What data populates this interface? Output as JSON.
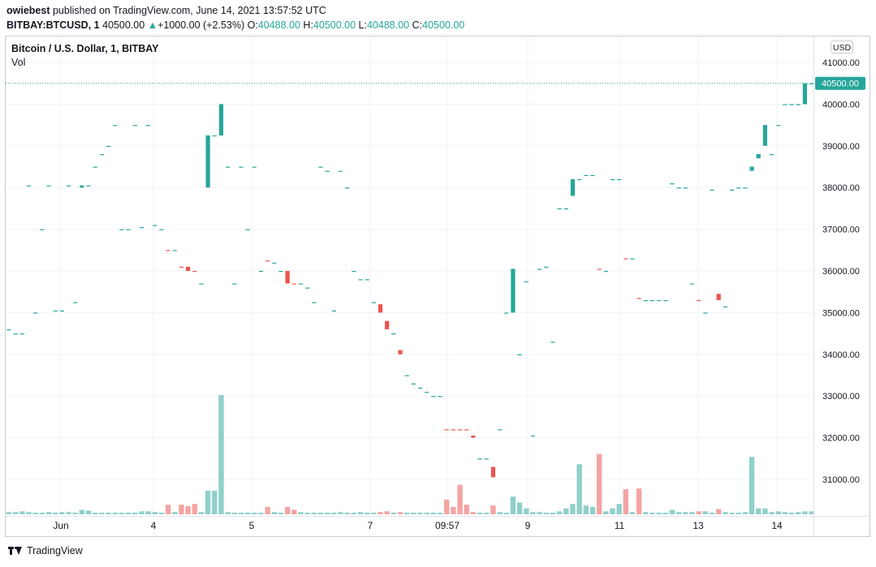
{
  "header": {
    "author": "owiebest",
    "published": "published on TradingView.com, June 14, 2021 13:57:52 UTC",
    "symbol": "BITBAY:BTCUSD, 1",
    "last": "40500.00",
    "change": "+1000.00 (+2.53%)",
    "o_label": "O:",
    "o": "40488.00",
    "h_label": "H:",
    "h": "40500.00",
    "l_label": "L:",
    "l": "40488.00",
    "c_label": "C:",
    "c": "40500.00"
  },
  "legend": {
    "title": "Bitcoin / U.S. Dollar, 1, BITBAY",
    "vol": "Vol"
  },
  "currency_button": "USD",
  "footer": {
    "brand": "TradingView"
  },
  "colors": {
    "up": "#26a69a",
    "down": "#ef5350",
    "vol_up": "#8fd0c9",
    "vol_down": "#f3a4a3",
    "grid": "#f0f3fa",
    "last_price_bg": "#26a69a"
  },
  "chart_data": {
    "type": "candlestick",
    "x_ticks": [
      "Jun",
      "4",
      "5",
      "7",
      "09:57",
      "9",
      "11",
      "13",
      "14"
    ],
    "y_ticks": [
      "41000.00",
      "40000.00",
      "39000.00",
      "38000.00",
      "37000.00",
      "36000.00",
      "35000.00",
      "34000.00",
      "33000.00",
      "32000.00",
      "31000.00"
    ],
    "ylim": [
      30150,
      41600
    ],
    "last_price_label": "40500.00",
    "grid": true,
    "candles": [
      {
        "t": 0,
        "o": 34600,
        "c": 34600,
        "v": 3
      },
      {
        "t": 1,
        "o": 34500,
        "c": 34500,
        "v": 3
      },
      {
        "t": 2,
        "o": 34500,
        "c": 34500,
        "v": 4
      },
      {
        "t": 3,
        "o": 38050,
        "c": 38050,
        "v": 3
      },
      {
        "t": 4,
        "o": 35000,
        "c": 35000,
        "v": 2
      },
      {
        "t": 5,
        "o": 37000,
        "c": 37000,
        "v": 2
      },
      {
        "t": 6,
        "o": 38050,
        "c": 38050,
        "v": 3
      },
      {
        "t": 7,
        "o": 35050,
        "c": 35050,
        "v": 2
      },
      {
        "t": 8,
        "o": 35050,
        "c": 35050,
        "v": 3
      },
      {
        "t": 9,
        "o": 38050,
        "c": 38050,
        "v": 3
      },
      {
        "t": 10,
        "o": 35250,
        "c": 35250,
        "v": 2
      },
      {
        "t": 11,
        "o": 38000,
        "c": 38050,
        "v": 6
      },
      {
        "t": 12,
        "o": 38050,
        "c": 38050,
        "v": 5
      },
      {
        "t": 13,
        "o": 38500,
        "c": 38500,
        "v": 2
      },
      {
        "t": 14,
        "o": 38800,
        "c": 38800,
        "v": 2
      },
      {
        "t": 15,
        "o": 39000,
        "c": 39000,
        "v": 2
      },
      {
        "t": 16,
        "o": 39500,
        "c": 39500,
        "v": 2
      },
      {
        "t": 17,
        "o": 37000,
        "c": 37000,
        "v": 2
      },
      {
        "t": 18,
        "o": 37000,
        "c": 37000,
        "v": 2
      },
      {
        "t": 19,
        "o": 39500,
        "c": 39500,
        "v": 2
      },
      {
        "t": 20,
        "o": 37050,
        "c": 37050,
        "v": 4
      },
      {
        "t": 21,
        "o": 39500,
        "c": 39500,
        "v": 4
      },
      {
        "t": 22,
        "o": 37100,
        "c": 37100,
        "v": 3
      },
      {
        "t": 23,
        "o": 37000,
        "c": 37000,
        "v": 2
      },
      {
        "t": 24,
        "o": 36500,
        "c": 36500,
        "v": 13,
        "d": 1
      },
      {
        "t": 25,
        "o": 36500,
        "c": 36500,
        "v": 3
      },
      {
        "t": 26,
        "o": 36100,
        "c": 36100,
        "v": 13,
        "d": 1
      },
      {
        "t": 27,
        "o": 36100,
        "c": 36000,
        "v": 11,
        "d": 1
      },
      {
        "t": 28,
        "o": 36000,
        "c": 36000,
        "v": 14,
        "d": 1
      },
      {
        "t": 29,
        "o": 35700,
        "c": 35700,
        "v": 3
      },
      {
        "t": 30,
        "o": 38000,
        "c": 39250,
        "v": 32
      },
      {
        "t": 31,
        "o": 39250,
        "c": 39250,
        "v": 32
      },
      {
        "t": 32,
        "o": 39250,
        "c": 40000,
        "v": 162
      },
      {
        "t": 33,
        "o": 38500,
        "c": 38500,
        "v": 3
      },
      {
        "t": 34,
        "o": 35700,
        "c": 35700,
        "v": 2
      },
      {
        "t": 35,
        "o": 38500,
        "c": 38500,
        "v": 2
      },
      {
        "t": 36,
        "o": 37000,
        "c": 37000,
        "v": 2
      },
      {
        "t": 37,
        "o": 38500,
        "c": 38500,
        "v": 2
      },
      {
        "t": 38,
        "o": 36000,
        "c": 36000,
        "v": 2
      },
      {
        "t": 39,
        "o": 36250,
        "c": 36250,
        "v": 10,
        "d": 1
      },
      {
        "t": 40,
        "o": 36200,
        "c": 36200,
        "v": 3
      },
      {
        "t": 41,
        "o": 36000,
        "c": 36000,
        "v": 2
      },
      {
        "t": 42,
        "o": 36000,
        "c": 35700,
        "v": 10,
        "d": 1
      },
      {
        "t": 43,
        "o": 35700,
        "c": 35700,
        "v": 6,
        "d": 1
      },
      {
        "t": 44,
        "o": 35700,
        "c": 35700,
        "v": 3
      },
      {
        "t": 45,
        "o": 35600,
        "c": 35600,
        "v": 2
      },
      {
        "t": 46,
        "o": 35250,
        "c": 35250,
        "v": 2
      },
      {
        "t": 47,
        "o": 38500,
        "c": 38500,
        "v": 2
      },
      {
        "t": 48,
        "o": 38400,
        "c": 38400,
        "v": 2
      },
      {
        "t": 49,
        "o": 35050,
        "c": 35050,
        "v": 2
      },
      {
        "t": 50,
        "o": 38400,
        "c": 38400,
        "v": 3
      },
      {
        "t": 51,
        "o": 38000,
        "c": 38000,
        "v": 2
      },
      {
        "t": 52,
        "o": 36000,
        "c": 36000,
        "v": 2
      },
      {
        "t": 53,
        "o": 35800,
        "c": 35800,
        "v": 3
      },
      {
        "t": 54,
        "o": 35800,
        "c": 35800,
        "v": 2
      },
      {
        "t": 55,
        "o": 35250,
        "c": 35250,
        "v": 2
      },
      {
        "t": 56,
        "o": 35200,
        "c": 35000,
        "v": 3,
        "d": 1
      },
      {
        "t": 57,
        "o": 34800,
        "c": 34600,
        "v": 4,
        "d": 1
      },
      {
        "t": 58,
        "o": 34500,
        "c": 34500,
        "v": 2
      },
      {
        "t": 59,
        "o": 34100,
        "c": 34000,
        "v": 3,
        "d": 1
      },
      {
        "t": 60,
        "o": 33500,
        "c": 33500,
        "v": 2
      },
      {
        "t": 61,
        "o": 33300,
        "c": 33300,
        "v": 2
      },
      {
        "t": 62,
        "o": 33200,
        "c": 33200,
        "v": 2
      },
      {
        "t": 63,
        "o": 33100,
        "c": 33100,
        "v": 2
      },
      {
        "t": 64,
        "o": 33000,
        "c": 33000,
        "v": 2
      },
      {
        "t": 65,
        "o": 33000,
        "c": 33000,
        "v": 2
      },
      {
        "t": 66,
        "o": 32200,
        "c": 32200,
        "v": 20,
        "d": 1
      },
      {
        "t": 67,
        "o": 32200,
        "c": 32200,
        "v": 10,
        "d": 1
      },
      {
        "t": 68,
        "o": 32200,
        "c": 32200,
        "v": 40,
        "d": 1
      },
      {
        "t": 69,
        "o": 32200,
        "c": 32200,
        "v": 13,
        "d": 1
      },
      {
        "t": 70,
        "o": 32050,
        "c": 32000,
        "v": 3,
        "d": 1
      },
      {
        "t": 71,
        "o": 31500,
        "c": 31500,
        "v": 2
      },
      {
        "t": 72,
        "o": 31500,
        "c": 31500,
        "v": 2
      },
      {
        "t": 73,
        "o": 31300,
        "c": 31050,
        "v": 12,
        "d": 1
      },
      {
        "t": 74,
        "o": 32200,
        "c": 32200,
        "v": 3
      },
      {
        "t": 75,
        "o": 35000,
        "c": 35000,
        "v": 2
      },
      {
        "t": 76,
        "o": 35000,
        "c": 36050,
        "v": 24
      },
      {
        "t": 77,
        "o": 34000,
        "c": 34000,
        "v": 16
      },
      {
        "t": 78,
        "o": 35750,
        "c": 35750,
        "v": 8
      },
      {
        "t": 79,
        "o": 32050,
        "c": 32050,
        "v": 3
      },
      {
        "t": 80,
        "o": 36050,
        "c": 36050,
        "v": 3
      },
      {
        "t": 81,
        "o": 36100,
        "c": 36100,
        "v": 2
      },
      {
        "t": 82,
        "o": 34300,
        "c": 34300,
        "v": 2
      },
      {
        "t": 83,
        "o": 37500,
        "c": 37500,
        "v": 4
      },
      {
        "t": 84,
        "o": 37500,
        "c": 37500,
        "v": 8
      },
      {
        "t": 85,
        "o": 37800,
        "c": 38200,
        "v": 14
      },
      {
        "t": 86,
        "o": 38200,
        "c": 38200,
        "v": 68
      },
      {
        "t": 87,
        "o": 38300,
        "c": 38300,
        "v": 12
      },
      {
        "t": 88,
        "o": 38300,
        "c": 38300,
        "v": 10
      },
      {
        "t": 89,
        "o": 36050,
        "c": 36050,
        "v": 82,
        "d": 1
      },
      {
        "t": 90,
        "o": 36000,
        "c": 36000,
        "v": 4
      },
      {
        "t": 91,
        "o": 38200,
        "c": 38200,
        "v": 8
      },
      {
        "t": 92,
        "o": 38200,
        "c": 38200,
        "v": 14
      },
      {
        "t": 93,
        "o": 36300,
        "c": 36300,
        "v": 34,
        "d": 1
      },
      {
        "t": 94,
        "o": 36300,
        "c": 36300,
        "v": 3
      },
      {
        "t": 95,
        "o": 35350,
        "c": 35350,
        "v": 35,
        "d": 1
      },
      {
        "t": 96,
        "o": 35300,
        "c": 35300,
        "v": 3
      },
      {
        "t": 97,
        "o": 35300,
        "c": 35300,
        "v": 2
      },
      {
        "t": 98,
        "o": 35300,
        "c": 35300,
        "v": 2
      },
      {
        "t": 99,
        "o": 35300,
        "c": 35300,
        "v": 2
      },
      {
        "t": 100,
        "o": 38100,
        "c": 38100,
        "v": 6
      },
      {
        "t": 101,
        "o": 38000,
        "c": 38000,
        "v": 3
      },
      {
        "t": 102,
        "o": 38000,
        "c": 38000,
        "v": 3
      },
      {
        "t": 103,
        "o": 35700,
        "c": 35700,
        "v": 3
      },
      {
        "t": 104,
        "o": 35300,
        "c": 35300,
        "v": 4,
        "d": 1
      },
      {
        "t": 105,
        "o": 35000,
        "c": 35000,
        "v": 4
      },
      {
        "t": 106,
        "o": 37950,
        "c": 37950,
        "v": 2
      },
      {
        "t": 107,
        "o": 35450,
        "c": 35300,
        "v": 7,
        "d": 1
      },
      {
        "t": 108,
        "o": 35150,
        "c": 35150,
        "v": 3
      },
      {
        "t": 109,
        "o": 37950,
        "c": 37950,
        "v": 2
      },
      {
        "t": 110,
        "o": 38000,
        "c": 38000,
        "v": 2
      },
      {
        "t": 111,
        "o": 38000,
        "c": 38000,
        "v": 3
      },
      {
        "t": 112,
        "o": 38400,
        "c": 38500,
        "v": 78
      },
      {
        "t": 113,
        "o": 38700,
        "c": 38800,
        "v": 8
      },
      {
        "t": 114,
        "o": 39000,
        "c": 39500,
        "v": 8
      },
      {
        "t": 115,
        "o": 38800,
        "c": 38800,
        "v": 3
      },
      {
        "t": 116,
        "o": 39500,
        "c": 39500,
        "v": 4
      },
      {
        "t": 117,
        "o": 40000,
        "c": 40000,
        "v": 3
      },
      {
        "t": 118,
        "o": 40000,
        "c": 40000,
        "v": 2
      },
      {
        "t": 119,
        "o": 40000,
        "c": 40000,
        "v": 3
      },
      {
        "t": 120,
        "o": 40000,
        "c": 40500,
        "v": 4
      },
      {
        "t": 121,
        "o": 40488,
        "c": 40500,
        "v": 4
      }
    ]
  }
}
